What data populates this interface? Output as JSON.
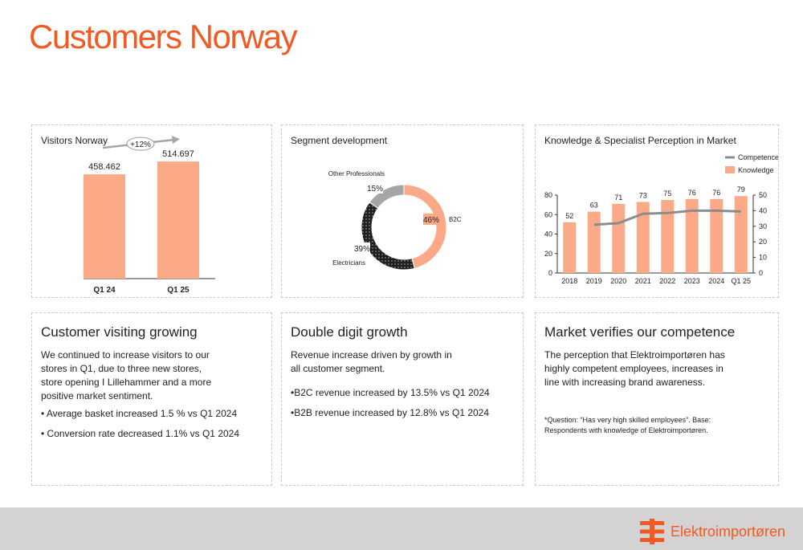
{
  "page": {
    "title": "Customers Norway"
  },
  "panels": {
    "visitors": {
      "title": "Visitors Norway",
      "growth_label": "+12%"
    },
    "segment": {
      "title": "Segment development"
    },
    "perception": {
      "title": "Knowledge & Specialist Perception in Market"
    },
    "growing": {
      "title": "Customer visiting growing",
      "paragraph": "We continued to increase visitors to our stores in Q1, due to three new stores, store opening I Lillehammer and a more positive market sentiment.",
      "bullets": [
        "• Average basket increased  1.5 % vs Q1 2024",
        "• Conversion rate decreased 1.1% vs Q1 2024"
      ]
    },
    "double": {
      "title": "Double digit growth",
      "paragraph": "Revenue increase driven by growth in all customer segment.",
      "bullets": [
        "•B2C revenue increased by 13.5% vs Q1 2024",
        "•B2B revenue increased by 12.8% vs Q1 2024"
      ]
    },
    "market": {
      "title": "Market verifies our competence",
      "paragraph": "The perception that Elektroimportøren has highly competent employees, increases in line with increasing brand awareness.",
      "footnote": "*Question: “Has very high skilled employees”. Base: Respondents with knowledge of Elektroimportøren."
    }
  },
  "footer": {
    "brand": "Elektroimportøren"
  },
  "colors": {
    "accent": "#f15a22",
    "bar": "#fba987",
    "competence": "#8c8c8c",
    "grey": "#a6a6a6",
    "dark": "#1f1f1f"
  },
  "chart_data": [
    {
      "type": "bar",
      "title": "Visitors Norway",
      "categories": [
        "Q1 24",
        "Q1 25"
      ],
      "values": [
        458.462,
        514.697
      ],
      "value_labels": [
        "458.462",
        "514.697"
      ],
      "ylim": [
        0,
        600
      ]
    },
    {
      "type": "pie",
      "title": "Segment development",
      "slices": [
        {
          "name": "B2C",
          "value": 46,
          "label": "46%",
          "color": "#fba987"
        },
        {
          "name": "Electricians",
          "value": 39,
          "label": "39%",
          "color": "#1f1f1f"
        },
        {
          "name": "Other Professionals",
          "value": 15,
          "label": "15%",
          "color": "#a6a6a6"
        }
      ]
    },
    {
      "type": "bar",
      "title": "Knowledge & Specialist Perception in Market",
      "categories": [
        "2018",
        "2019",
        "2020",
        "2021",
        "2022",
        "2023",
        "2024",
        "Q1 25"
      ],
      "series": [
        {
          "name": "Knowledge",
          "type": "bar",
          "axis": "left",
          "values": [
            52,
            63,
            71,
            73,
            75,
            76,
            76,
            79
          ]
        },
        {
          "name": "Competence*",
          "type": "line",
          "axis": "right",
          "values": [
            null,
            31,
            32,
            38,
            38.5,
            40,
            40,
            39.5
          ]
        }
      ],
      "y_left": {
        "ticks": [
          "0",
          "20",
          "40",
          "60",
          "80"
        ],
        "lim": [
          0,
          80
        ]
      },
      "y_right": {
        "ticks": [
          "0",
          "10",
          "20",
          "30",
          "40",
          "50"
        ],
        "lim": [
          0,
          50
        ]
      },
      "legend": "top-right"
    }
  ]
}
